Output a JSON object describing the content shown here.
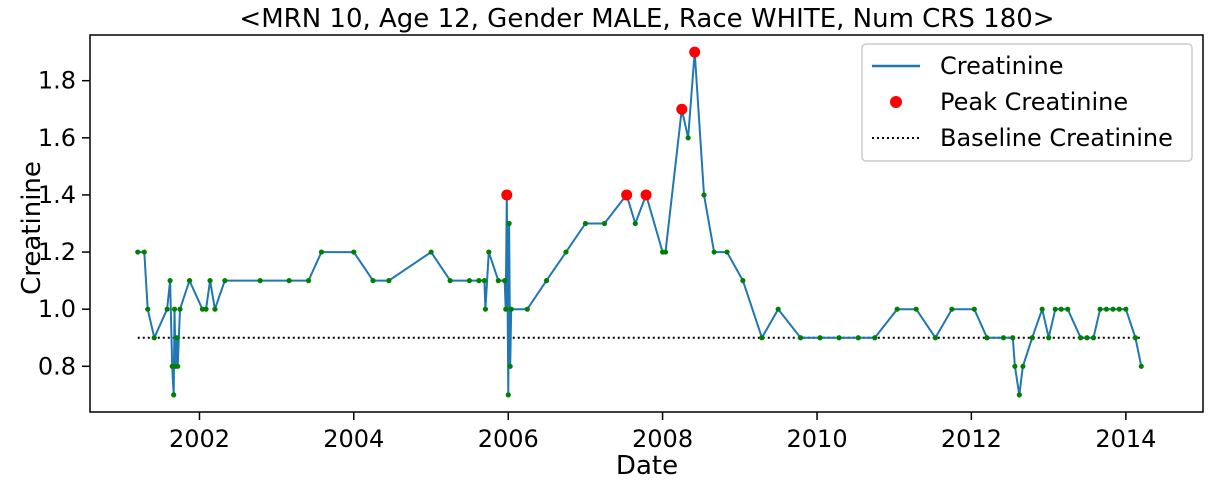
{
  "chart_data": {
    "type": "line",
    "title": "<MRN 10, Age 12, Gender MALE, Race WHITE, Num CRS 180>",
    "xlabel": "Date",
    "ylabel": "Creatinine",
    "xlim": [
      "2000-08-01",
      "2015-01-01"
    ],
    "ylim": [
      0.64,
      1.96
    ],
    "x_ticks": [
      "2002",
      "2004",
      "2006",
      "2008",
      "2010",
      "2012",
      "2014"
    ],
    "y_ticks": [
      "0.8",
      "1.0",
      "1.2",
      "1.4",
      "1.6",
      "1.8"
    ],
    "grid": false,
    "legend_position": "top-right",
    "colors": {
      "line": "#1f77b4",
      "points": "#008000",
      "peak": "#ff0000",
      "baseline": "#000000"
    },
    "series": [
      {
        "name": "Creatinine",
        "x": [
          "2001-03-15",
          "2001-04-15",
          "2001-05-01",
          "2001-06-01",
          "2001-08-01",
          "2001-08-15",
          "2001-08-25",
          "2001-09-01",
          "2001-09-05",
          "2001-09-10",
          "2001-09-15",
          "2001-09-20",
          "2001-10-01",
          "2001-11-15",
          "2002-01-15",
          "2002-02-01",
          "2002-02-20",
          "2002-03-15",
          "2002-05-01",
          "2002-10-15",
          "2003-03-01",
          "2003-06-01",
          "2003-08-01",
          "2004-01-01",
          "2004-04-01",
          "2004-06-15",
          "2005-01-01",
          "2005-04-01",
          "2005-07-01",
          "2005-08-15",
          "2005-09-10",
          "2005-09-15",
          "2005-10-01",
          "2005-11-15",
          "2005-12-15",
          "2005-12-20",
          "2005-12-25",
          "2006-01-01",
          "2006-01-05",
          "2006-01-10",
          "2006-01-15",
          "2006-04-01",
          "2006-07-01",
          "2006-10-01",
          "2007-01-01",
          "2007-04-01",
          "2007-07-15",
          "2007-08-25",
          "2007-10-15",
          "2008-01-01",
          "2008-01-15",
          "2008-04-01",
          "2008-05-01",
          "2008-06-01",
          "2008-07-15",
          "2008-09-01",
          "2008-11-01",
          "2009-01-15",
          "2009-04-15",
          "2009-07-01",
          "2009-10-15",
          "2010-01-15",
          "2010-04-15",
          "2010-07-15",
          "2010-10-01",
          "2011-01-15",
          "2011-04-15",
          "2011-07-15",
          "2011-10-01",
          "2012-01-15",
          "2012-03-15",
          "2012-06-01",
          "2012-07-15",
          "2012-07-25",
          "2012-08-15",
          "2012-09-01",
          "2012-10-15",
          "2012-12-01",
          "2013-01-01",
          "2013-02-01",
          "2013-03-01",
          "2013-04-01",
          "2013-06-01",
          "2013-07-01",
          "2013-08-01",
          "2013-09-01",
          "2013-10-01",
          "2013-11-01",
          "2013-12-01",
          "2014-01-01",
          "2014-02-15",
          "2014-03-15"
        ],
        "y": [
          1.2,
          1.2,
          1.0,
          0.9,
          1.0,
          1.1,
          0.8,
          0.7,
          1.0,
          0.8,
          0.9,
          0.8,
          1.0,
          1.1,
          1.0,
          1.0,
          1.1,
          1.0,
          1.1,
          1.1,
          1.1,
          1.1,
          1.2,
          1.2,
          1.1,
          1.1,
          1.2,
          1.1,
          1.1,
          1.1,
          1.1,
          1.0,
          1.2,
          1.1,
          1.1,
          1.0,
          1.4,
          0.7,
          1.3,
          0.8,
          1.0,
          1.0,
          1.1,
          1.2,
          1.3,
          1.3,
          1.4,
          1.3,
          1.4,
          1.2,
          1.2,
          1.7,
          1.6,
          1.9,
          1.4,
          1.2,
          1.2,
          1.1,
          0.9,
          1.0,
          0.9,
          0.9,
          0.9,
          0.9,
          0.9,
          1.0,
          1.0,
          0.9,
          1.0,
          1.0,
          0.9,
          0.9,
          0.9,
          0.8,
          0.7,
          0.8,
          0.9,
          1.0,
          0.9,
          1.0,
          1.0,
          1.0,
          0.9,
          0.9,
          0.9,
          1.0,
          1.0,
          1.0,
          1.0,
          1.0,
          0.9,
          0.8
        ]
      },
      {
        "name": "Peak Creatinine",
        "x": [
          "2005-12-25",
          "2007-07-15",
          "2007-10-15",
          "2008-04-01",
          "2008-06-01"
        ],
        "y": [
          1.4,
          1.4,
          1.4,
          1.7,
          1.9
        ]
      },
      {
        "name": "Baseline Creatinine",
        "x": [
          "2001-03-15",
          "2014-03-15"
        ],
        "y": [
          0.9,
          0.9
        ]
      }
    ]
  }
}
